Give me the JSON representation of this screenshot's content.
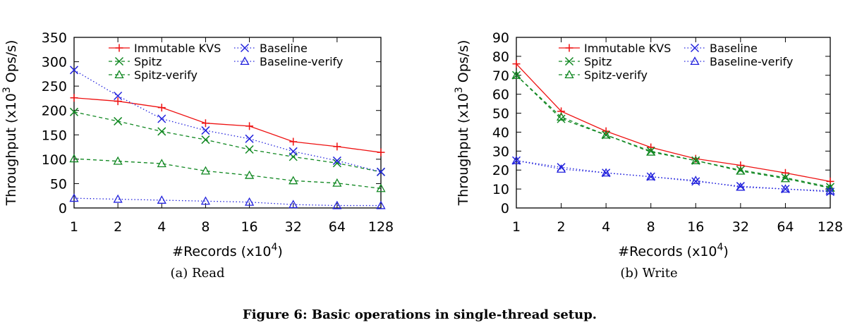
{
  "figure_caption": "Figure 6: Basic operations in single-thread setup.",
  "chart_data": [
    {
      "type": "line",
      "subcaption": "(a) Read",
      "xlabel_main": "#Records (x10",
      "xlabel_exp": "4",
      "xlabel_tail": ")",
      "ylabel_main": "Throughput (x10",
      "ylabel_exp": "3",
      "ylabel_tail": " Ops/s)",
      "x_scale": "log2",
      "x": [
        1,
        2,
        4,
        8,
        16,
        32,
        64,
        128
      ],
      "x_tick_labels": [
        "1",
        "2",
        "4",
        "8",
        "16",
        "32",
        "64",
        "128"
      ],
      "ylim": [
        0,
        350
      ],
      "y_ticks": [
        0,
        50,
        100,
        150,
        200,
        250,
        300,
        350
      ],
      "legend_placement": "top",
      "series": [
        {
          "name": "Immutable KVS",
          "color": "#ee1111",
          "marker": "plus",
          "dash": "solid",
          "values": [
            226,
            219,
            206,
            174,
            168,
            136,
            126,
            114
          ]
        },
        {
          "name": "Spitz",
          "color": "#118822",
          "marker": "x",
          "dash": "dashed",
          "values": [
            197,
            178,
            157,
            140,
            120,
            105,
            92,
            74
          ]
        },
        {
          "name": "Spitz-verify",
          "color": "#118822",
          "marker": "triangle",
          "dash": "dashed",
          "values": [
            101,
            96,
            91,
            76,
            67,
            56,
            51,
            40
          ]
        },
        {
          "name": "Baseline",
          "color": "#2222dd",
          "marker": "x",
          "dash": "dotted",
          "values": [
            283,
            230,
            183,
            159,
            142,
            116,
            97,
            74
          ]
        },
        {
          "name": "Baseline-verify",
          "color": "#2222dd",
          "marker": "triangle",
          "dash": "dotted",
          "values": [
            20,
            18,
            16,
            14,
            12,
            7,
            5,
            5
          ]
        }
      ]
    },
    {
      "type": "line",
      "subcaption": "(b) Write",
      "xlabel_main": "#Records (x10",
      "xlabel_exp": "4",
      "xlabel_tail": ")",
      "ylabel_main": "Throughput (x10",
      "ylabel_exp": "3",
      "ylabel_tail": " Ops/s)",
      "x_scale": "log2",
      "x": [
        1,
        2,
        4,
        8,
        16,
        32,
        64,
        128
      ],
      "x_tick_labels": [
        "1",
        "2",
        "4",
        "8",
        "16",
        "32",
        "64",
        "128"
      ],
      "ylim": [
        0,
        90
      ],
      "y_ticks": [
        0,
        10,
        20,
        30,
        40,
        50,
        60,
        70,
        80,
        90
      ],
      "legend_placement": "top-right",
      "series": [
        {
          "name": "Immutable KVS",
          "color": "#ee1111",
          "marker": "plus",
          "dash": "solid",
          "values": [
            76,
            51,
            40.5,
            32,
            26,
            22.5,
            18.5,
            14
          ]
        },
        {
          "name": "Spitz",
          "color": "#118822",
          "marker": "x",
          "dash": "dashed",
          "values": [
            70,
            47,
            38.5,
            30,
            25,
            20,
            16,
            11
          ]
        },
        {
          "name": "Spitz-verify",
          "color": "#118822",
          "marker": "triangle",
          "dash": "dashed",
          "values": [
            70,
            48,
            38.5,
            29.5,
            25,
            19.5,
            15.5,
            10.5
          ]
        },
        {
          "name": "Baseline",
          "color": "#2222dd",
          "marker": "x",
          "dash": "dotted",
          "values": [
            25,
            21.5,
            18.5,
            16.5,
            14,
            11.5,
            10,
            8.5
          ]
        },
        {
          "name": "Baseline-verify",
          "color": "#2222dd",
          "marker": "triangle",
          "dash": "dotted",
          "values": [
            25,
            20.5,
            18.5,
            16.5,
            14.5,
            11,
            10,
            9
          ]
        }
      ]
    }
  ]
}
